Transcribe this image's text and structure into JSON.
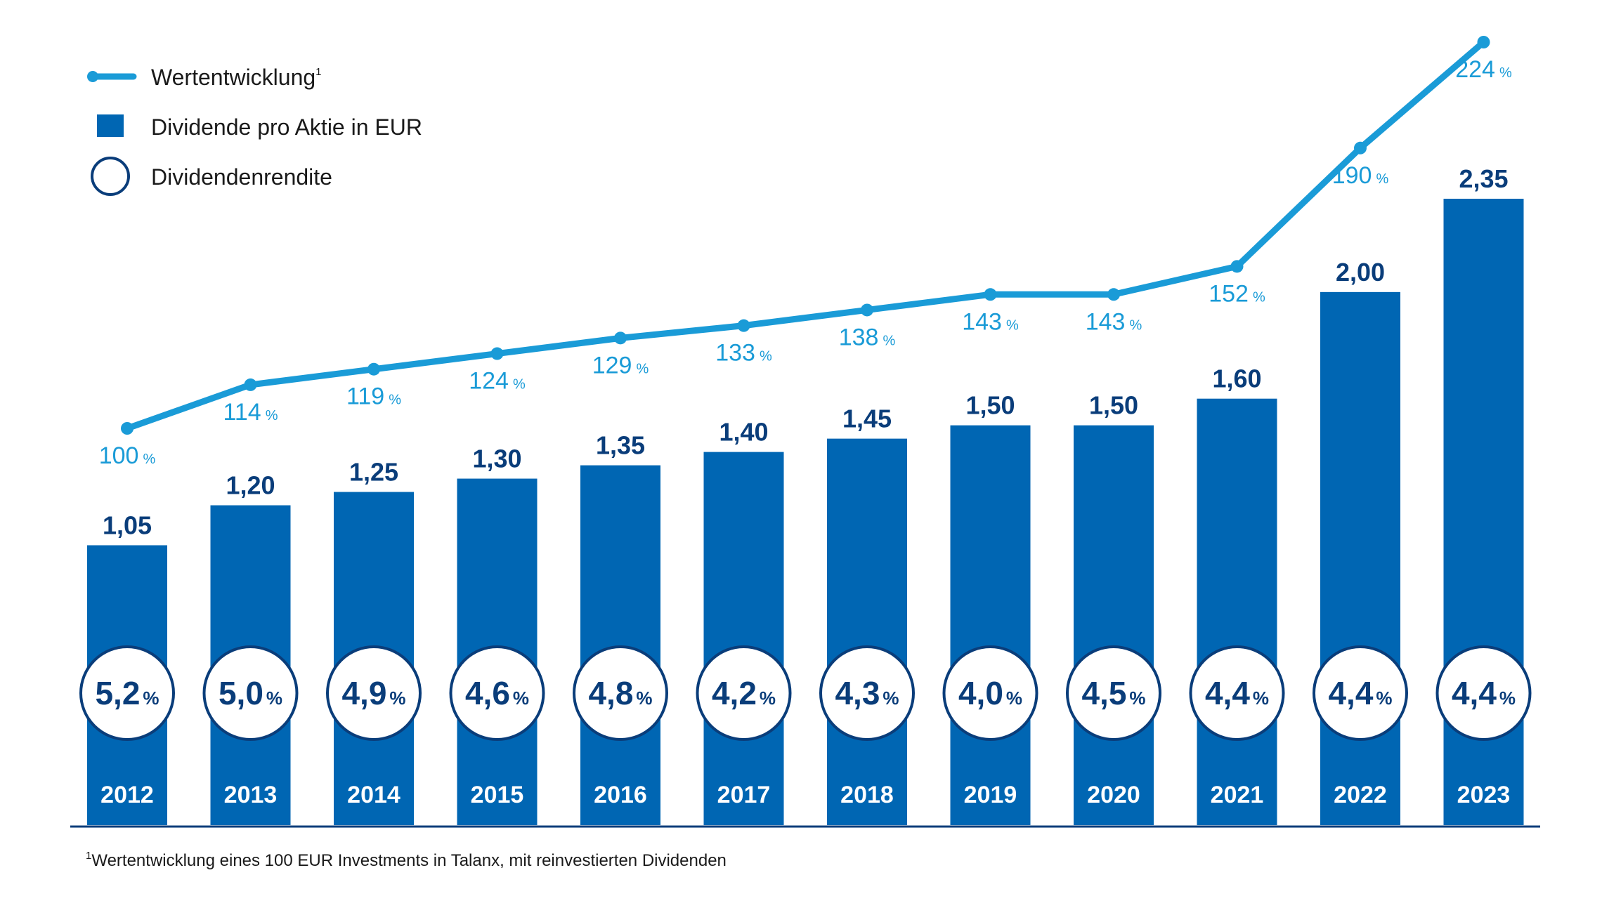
{
  "legend": {
    "line_label": "Wertentwicklung",
    "line_label_sup": "1",
    "bar_label": "Dividende pro Aktie in EUR",
    "circle_label": "Dividendenrendite"
  },
  "footnote": {
    "marker": "1",
    "text": "Wertentwicklung eines 100 EUR Investments in Talanx, mit reinvestierten Dividenden"
  },
  "colors": {
    "bar": "#0066b3",
    "line": "#1a9bd7",
    "dark_text": "#0a3d7a",
    "axis": "#0a3d7a"
  },
  "chart_data": {
    "type": "bar",
    "categories": [
      "2012",
      "2013",
      "2014",
      "2015",
      "2016",
      "2017",
      "2018",
      "2019",
      "2020",
      "2021",
      "2022",
      "2023"
    ],
    "series": [
      {
        "name": "Dividende pro Aktie in EUR",
        "values": [
          1.05,
          1.2,
          1.25,
          1.3,
          1.35,
          1.4,
          1.45,
          1.5,
          1.5,
          1.6,
          2.0,
          2.35
        ],
        "labels": [
          "1,05",
          "1,20",
          "1,25",
          "1,30",
          "1,35",
          "1,40",
          "1,45",
          "1,50",
          "1,50",
          "1,60",
          "2,00",
          "2,35"
        ]
      },
      {
        "name": "Wertentwicklung",
        "type": "line",
        "values": [
          100,
          114,
          119,
          124,
          129,
          133,
          138,
          143,
          143,
          152,
          190,
          224
        ],
        "labels": [
          "100",
          "114",
          "119",
          "124",
          "129",
          "133",
          "138",
          "143",
          "143",
          "152",
          "190",
          "224"
        ],
        "unit": "%"
      },
      {
        "name": "Dividendenrendite",
        "values": [
          5.2,
          5.0,
          4.9,
          4.6,
          4.8,
          4.2,
          4.3,
          4.0,
          4.5,
          4.4,
          4.4,
          4.4
        ],
        "labels": [
          "5,2",
          "5,0",
          "4,9",
          "4,6",
          "4,8",
          "4,2",
          "4,3",
          "4,0",
          "4,5",
          "4,4",
          "4,4",
          "4,4"
        ],
        "unit": "%"
      }
    ],
    "legend_position": "top-left"
  }
}
